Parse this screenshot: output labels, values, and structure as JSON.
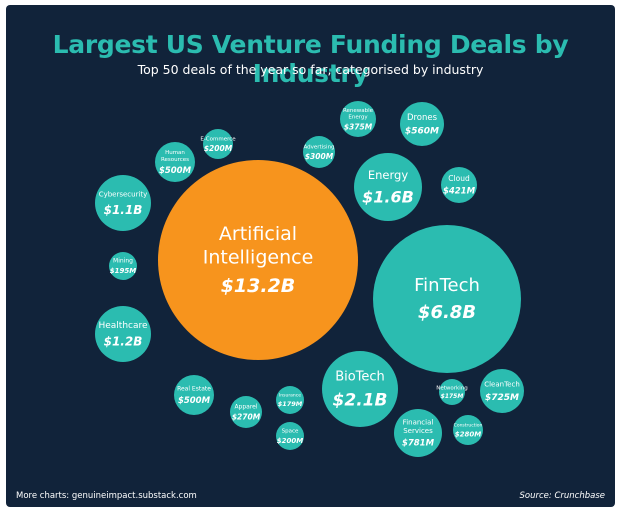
{
  "header": {
    "title": "Largest US Venture Funding Deals by Industry",
    "subtitle": "Top 50 deals of the year so far, categorised by industry"
  },
  "footer": {
    "left": "More charts: genuineimpact.substack.com",
    "right": "Source: Crunchbase"
  },
  "colors": {
    "background": "#11233a",
    "bubble": "#2bbcb0",
    "highlight": "#f7941d",
    "title": "#2bbcb0",
    "text": "#ffffff"
  },
  "chart_data": {
    "type": "bubble",
    "title": "Largest US Venture Funding Deals by Industry",
    "subtitle": "Top 50 deals of the year so far, categorised by industry",
    "unit": "USD",
    "series": [
      {
        "values": [
          {
            "label": "Artificial Intelligence",
            "display_value": "$13.2B",
            "value": 13200000000,
            "highlight": true
          },
          {
            "label": "FinTech",
            "display_value": "$6.8B",
            "value": 6800000000
          },
          {
            "label": "BioTech",
            "display_value": "$2.1B",
            "value": 2100000000
          },
          {
            "label": "Energy",
            "display_value": "$1.6B",
            "value": 1600000000
          },
          {
            "label": "Healthcare",
            "display_value": "$1.2B",
            "value": 1200000000
          },
          {
            "label": "Cybersecurity",
            "display_value": "$1.1B",
            "value": 1100000000
          },
          {
            "label": "Financial Services",
            "display_value": "$781M",
            "value": 781000000
          },
          {
            "label": "CleanTech",
            "display_value": "$725M",
            "value": 725000000
          },
          {
            "label": "Drones",
            "display_value": "$560M",
            "value": 560000000
          },
          {
            "label": "Human Resources",
            "display_value": "$500M",
            "value": 500000000
          },
          {
            "label": "Real Estate",
            "display_value": "$500M",
            "value": 500000000
          },
          {
            "label": "Cloud",
            "display_value": "$421M",
            "value": 421000000
          },
          {
            "label": "Renewable Energy",
            "display_value": "$375M",
            "value": 375000000
          },
          {
            "label": "Advertising",
            "display_value": "$300M",
            "value": 300000000
          },
          {
            "label": "Construction",
            "display_value": "$280M",
            "value": 280000000
          },
          {
            "label": "Apparel",
            "display_value": "$270M",
            "value": 270000000
          },
          {
            "label": "E-Commerce",
            "display_value": "$200M",
            "value": 200000000
          },
          {
            "label": "Space",
            "display_value": "$200M",
            "value": 200000000
          },
          {
            "label": "Mining",
            "display_value": "$195M",
            "value": 195000000
          },
          {
            "label": "Insurance",
            "display_value": "$179M",
            "value": 179000000
          },
          {
            "label": "Networking",
            "display_value": "$175M",
            "value": 175000000
          }
        ]
      }
    ]
  }
}
